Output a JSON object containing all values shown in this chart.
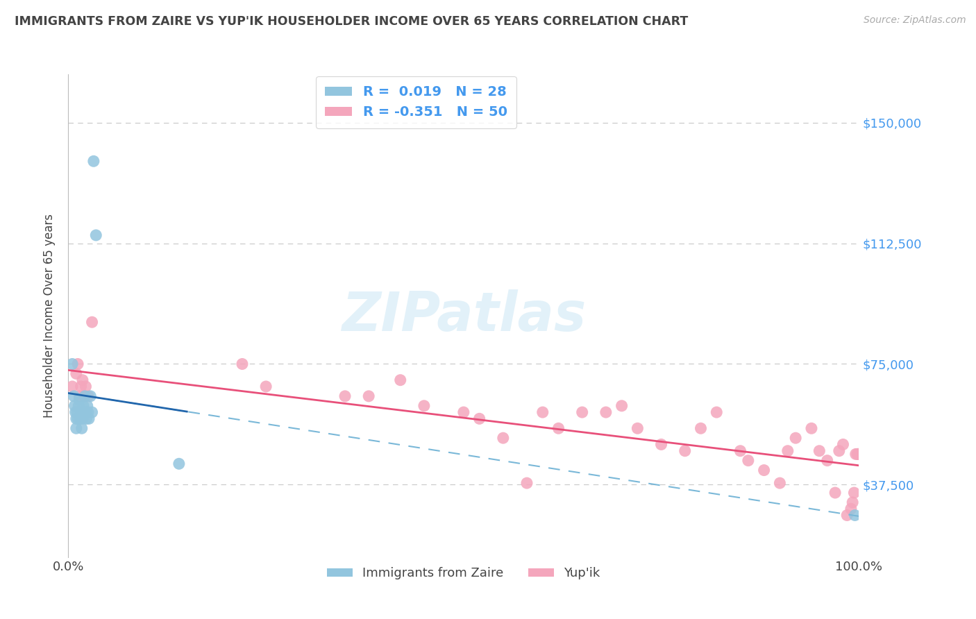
{
  "title": "IMMIGRANTS FROM ZAIRE VS YUP'IK HOUSEHOLDER INCOME OVER 65 YEARS CORRELATION CHART",
  "source": "Source: ZipAtlas.com",
  "ylabel": "Householder Income Over 65 years",
  "xlim": [
    0.0,
    1.0
  ],
  "ylim": [
    15000,
    165000
  ],
  "yticks": [
    37500,
    75000,
    112500,
    150000
  ],
  "ytick_labels": [
    "$37,500",
    "$75,000",
    "$112,500",
    "$150,000"
  ],
  "xtick_vals": [
    0.0,
    1.0
  ],
  "xtick_labels": [
    "0.0%",
    "100.0%"
  ],
  "legend_line1_r": "R =  0.019",
  "legend_line1_n": "N = 28",
  "legend_line2_r": "R = -0.351",
  "legend_line2_n": "N = 50",
  "legend_label_blue": "Immigrants from Zaire",
  "legend_label_pink": "Yup'ik",
  "blue_color": "#92c5de",
  "pink_color": "#f4a6bc",
  "blue_line_color": "#2166ac",
  "pink_line_color": "#e8507a",
  "text_color": "#4499ee",
  "label_color": "#444444",
  "source_color": "#aaaaaa",
  "watermark": "ZIPatlas",
  "watermark_color": "#d0e8f5",
  "background_color": "#ffffff",
  "grid_color": "#cccccc",
  "blue_scatter_x": [
    0.005,
    0.007,
    0.008,
    0.009,
    0.01,
    0.01,
    0.011,
    0.012,
    0.013,
    0.014,
    0.015,
    0.016,
    0.017,
    0.018,
    0.019,
    0.02,
    0.021,
    0.022,
    0.023,
    0.024,
    0.025,
    0.026,
    0.028,
    0.03,
    0.032,
    0.035,
    0.14,
    0.995
  ],
  "blue_scatter_y": [
    75000,
    65000,
    62000,
    60000,
    58000,
    55000,
    60000,
    58000,
    62000,
    64000,
    58000,
    60000,
    55000,
    58000,
    62000,
    60000,
    65000,
    60000,
    58000,
    62000,
    60000,
    58000,
    65000,
    60000,
    138000,
    115000,
    44000,
    28000
  ],
  "pink_scatter_x": [
    0.005,
    0.01,
    0.012,
    0.014,
    0.016,
    0.018,
    0.02,
    0.022,
    0.025,
    0.03,
    0.22,
    0.25,
    0.35,
    0.38,
    0.42,
    0.45,
    0.5,
    0.52,
    0.55,
    0.58,
    0.6,
    0.62,
    0.65,
    0.68,
    0.7,
    0.72,
    0.75,
    0.78,
    0.8,
    0.82,
    0.85,
    0.86,
    0.88,
    0.9,
    0.91,
    0.92,
    0.94,
    0.95,
    0.96,
    0.97,
    0.975,
    0.98,
    0.985,
    0.99,
    0.992,
    0.994,
    0.996,
    0.998,
    0.999,
    0.9995
  ],
  "pink_scatter_y": [
    68000,
    72000,
    75000,
    65000,
    68000,
    70000,
    65000,
    68000,
    65000,
    88000,
    75000,
    68000,
    65000,
    65000,
    70000,
    62000,
    60000,
    58000,
    52000,
    38000,
    60000,
    55000,
    60000,
    60000,
    62000,
    55000,
    50000,
    48000,
    55000,
    60000,
    48000,
    45000,
    42000,
    38000,
    48000,
    52000,
    55000,
    48000,
    45000,
    35000,
    48000,
    50000,
    28000,
    30000,
    32000,
    35000,
    47000,
    47000,
    47000,
    47000
  ]
}
